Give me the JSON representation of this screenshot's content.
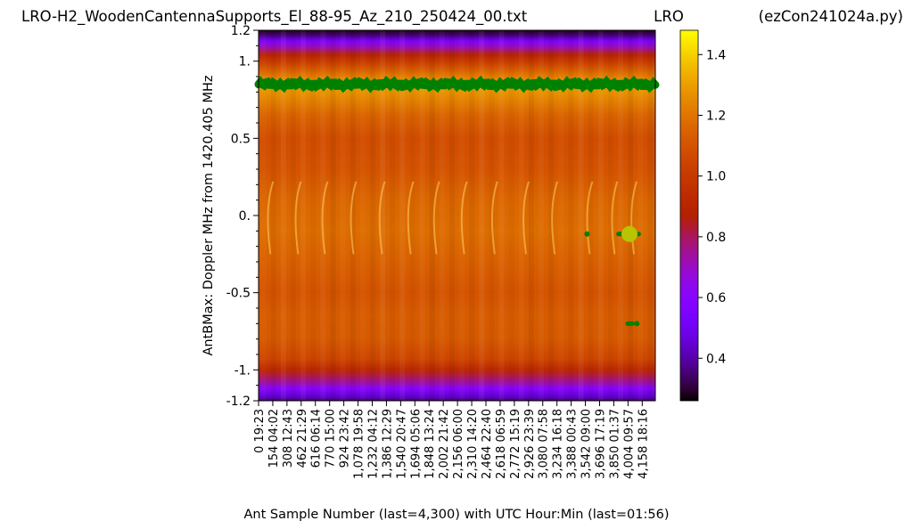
{
  "chart_data": {
    "type": "heatmap",
    "title_left": "LRO-H2_WoodenCantennaSupports_El_88-95_Az_210_250424_00.txt",
    "title_center": "LRO",
    "title_right": "(ezCon241024a.py)",
    "xlabel": "Ant Sample Number (last=4,300) with UTC Hour:Min (last=01:56)",
    "ylabel": "AntBMax:  Doppler MHz from 1420.405 MHz",
    "xlim": [
      0,
      4300
    ],
    "ylim": [
      -1.2,
      1.2
    ],
    "y_ticks": [
      {
        "v": 1.2,
        "label": "1.2"
      },
      {
        "v": 1.0,
        "label": "1."
      },
      {
        "v": 0.5,
        "label": "0.5"
      },
      {
        "v": 0.0,
        "label": "0."
      },
      {
        "v": -0.5,
        "label": "-0.5"
      },
      {
        "v": -1.0,
        "label": "-1."
      },
      {
        "v": -1.2,
        "label": "-1.2"
      }
    ],
    "x_ticks": [
      {
        "v": 0,
        "label": "0 19:23"
      },
      {
        "v": 154,
        "label": "154 04:02"
      },
      {
        "v": 308,
        "label": "308 12:43"
      },
      {
        "v": 462,
        "label": "462 21:29"
      },
      {
        "v": 616,
        "label": "616 06:14"
      },
      {
        "v": 770,
        "label": "770 15:00"
      },
      {
        "v": 924,
        "label": "924 23:42"
      },
      {
        "v": 1078,
        "label": "1,078 19:58"
      },
      {
        "v": 1232,
        "label": "1,232 04:12"
      },
      {
        "v": 1386,
        "label": "1,386 12:29"
      },
      {
        "v": 1540,
        "label": "1,540 20:47"
      },
      {
        "v": 1694,
        "label": "1,694 05:06"
      },
      {
        "v": 1848,
        "label": "1,848 13:24"
      },
      {
        "v": 2002,
        "label": "2,002 21:42"
      },
      {
        "v": 2156,
        "label": "2,156 06:00"
      },
      {
        "v": 2310,
        "label": "2,310 14:20"
      },
      {
        "v": 2464,
        "label": "2,464 22:40"
      },
      {
        "v": 2618,
        "label": "2,618 06:59"
      },
      {
        "v": 2772,
        "label": "2,772 15:19"
      },
      {
        "v": 2926,
        "label": "2,926 23:39"
      },
      {
        "v": 3080,
        "label": "3,080 07:58"
      },
      {
        "v": 3234,
        "label": "3,234 16:18"
      },
      {
        "v": 3388,
        "label": "3,388 00:43"
      },
      {
        "v": 3542,
        "label": "3,542 09:00"
      },
      {
        "v": 3696,
        "label": "3,696 17:19"
      },
      {
        "v": 3850,
        "label": "3,850 01:37"
      },
      {
        "v": 4004,
        "label": "4,004 09:57"
      },
      {
        "v": 4158,
        "label": "4,158 18:16"
      }
    ],
    "colorbar": {
      "colormap": "gnuplot",
      "range": [
        0.26,
        1.48
      ],
      "ticks": [
        {
          "v": 0.4,
          "label": "0.4"
        },
        {
          "v": 0.6,
          "label": "0.6"
        },
        {
          "v": 0.8,
          "label": "0.8"
        },
        {
          "v": 1.0,
          "label": "1.0"
        },
        {
          "v": 1.2,
          "label": "1.2"
        },
        {
          "v": 1.4,
          "label": "1.4"
        }
      ]
    },
    "intensity_profile": [
      {
        "y": 1.2,
        "v": 0.28
      },
      {
        "y": 1.17,
        "v": 0.35
      },
      {
        "y": 1.13,
        "v": 0.55
      },
      {
        "y": 1.09,
        "v": 0.72
      },
      {
        "y": 1.04,
        "v": 0.9
      },
      {
        "y": 0.98,
        "v": 1.05
      },
      {
        "y": 0.9,
        "v": 1.22
      },
      {
        "y": 0.85,
        "v": 1.3
      },
      {
        "y": 0.78,
        "v": 1.26
      },
      {
        "y": 0.65,
        "v": 1.15
      },
      {
        "y": 0.5,
        "v": 1.08
      },
      {
        "y": 0.3,
        "v": 1.1
      },
      {
        "y": 0.1,
        "v": 1.16
      },
      {
        "y": -0.1,
        "v": 1.18
      },
      {
        "y": -0.3,
        "v": 1.14
      },
      {
        "y": -0.5,
        "v": 1.1
      },
      {
        "y": -0.65,
        "v": 1.13
      },
      {
        "y": -0.8,
        "v": 1.12
      },
      {
        "y": -0.93,
        "v": 1.05
      },
      {
        "y": -1.0,
        "v": 0.92
      },
      {
        "y": -1.06,
        "v": 0.78
      },
      {
        "y": -1.12,
        "v": 0.6
      },
      {
        "y": -1.17,
        "v": 0.45
      },
      {
        "y": -1.2,
        "v": 0.35
      }
    ],
    "streak_x_positions": [
      100,
      400,
      690,
      1000,
      1310,
      1620,
      1900,
      2200,
      2530,
      2870,
      3180,
      3560,
      3830,
      4040
    ],
    "max_track": {
      "color": "#008000",
      "y_mean": 0.85,
      "start_x": 0,
      "end_x": 4300
    },
    "markers": [
      {
        "x": 3560,
        "y": -0.12,
        "kind": "dot",
        "color": "#008000"
      },
      {
        "x": 3900,
        "y": -0.12,
        "kind": "segment",
        "x_end": 4120,
        "color": "#008000"
      },
      {
        "x": 4020,
        "y": -0.12,
        "kind": "big-dot",
        "color": "#b8c400"
      },
      {
        "x": 4000,
        "y": -0.7,
        "kind": "segment",
        "x_end": 4050,
        "color": "#008000"
      },
      {
        "x": 4100,
        "y": -0.7,
        "kind": "dot",
        "color": "#008000"
      }
    ]
  }
}
